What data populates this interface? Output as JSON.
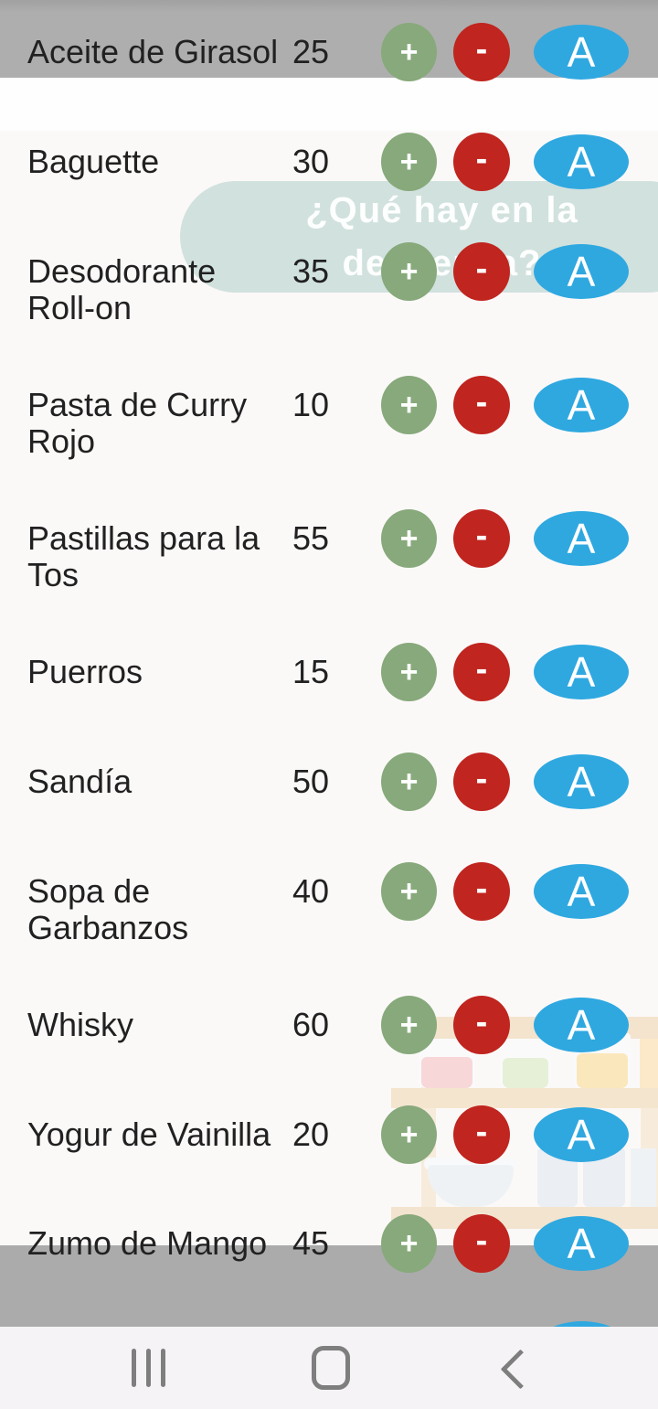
{
  "screen": {
    "question_overlay": {
      "line1": "¿Qué hay en la",
      "line2": "despensa?"
    },
    "list": {
      "items": [
        {
          "name": "Aceite de Girasol",
          "quantity": "25"
        },
        {
          "name": "Baguette",
          "quantity": "30"
        },
        {
          "name": "Desodorante\nRoll-on",
          "quantity": "35"
        },
        {
          "name": "Pasta de Curry\nRojo",
          "quantity": "10"
        },
        {
          "name": "Pastillas para la\nTos",
          "quantity": "55"
        },
        {
          "name": "Puerros",
          "quantity": "15"
        },
        {
          "name": "Sandía",
          "quantity": "50"
        },
        {
          "name": "Sopa de\nGarbanzos",
          "quantity": "40"
        },
        {
          "name": "Whisky",
          "quantity": "60"
        },
        {
          "name": "Yogur de Vainilla",
          "quantity": "20"
        },
        {
          "name": "Zumo de Mango",
          "quantity": "45"
        }
      ],
      "buttons": {
        "increment": "+",
        "decrement": "-",
        "action": "A"
      }
    },
    "colors": {
      "increment_green": "#87a97b",
      "decrement_red": "#c0251f",
      "action_blue": "#2fa8e0",
      "overlay_pill": "#d0e0de",
      "system_bar_gray": "#ababab",
      "text_dark": "#212121"
    },
    "navigation_bar": {
      "icons": [
        "recents",
        "home",
        "back"
      ]
    }
  }
}
